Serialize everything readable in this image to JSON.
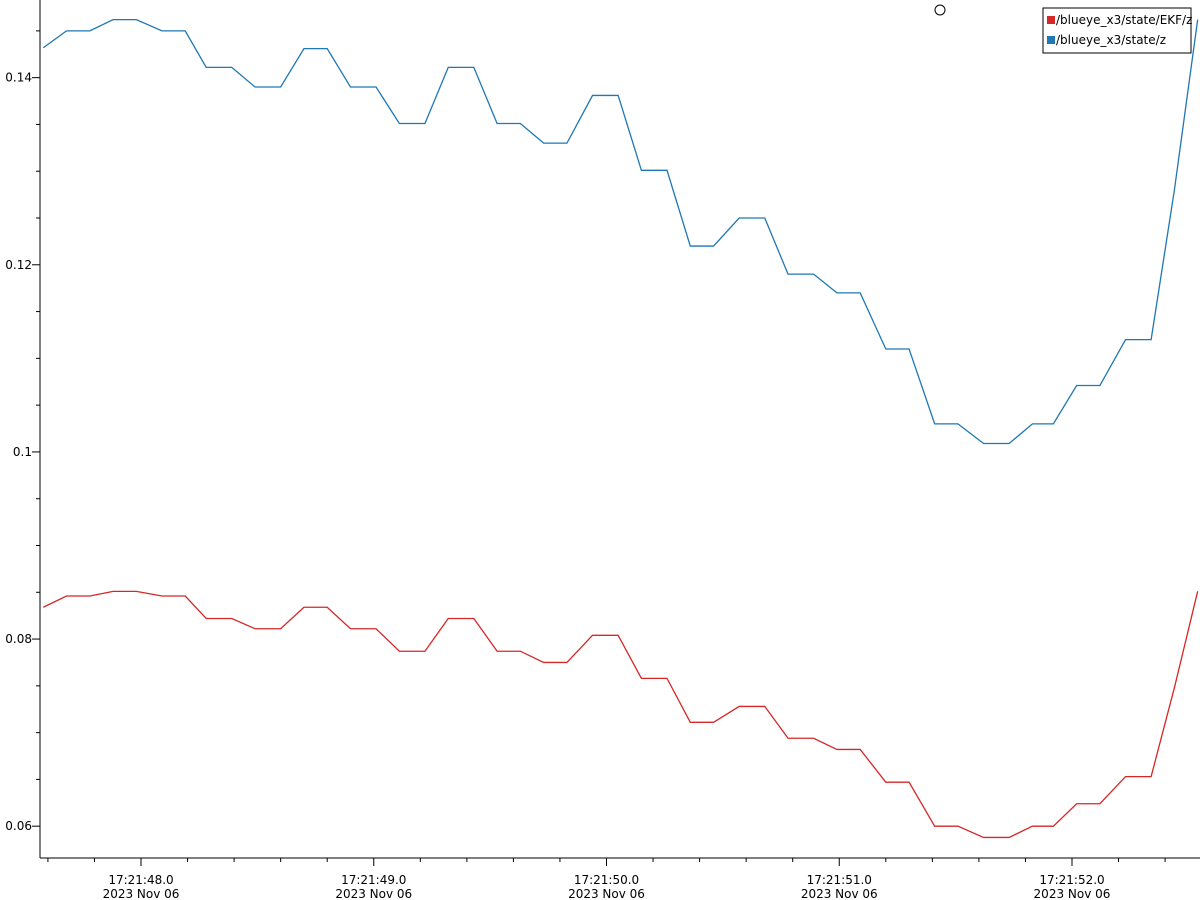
{
  "chart_data": {
    "type": "line",
    "x": [
      47.58,
      47.68,
      47.78,
      47.88,
      47.98,
      48.09,
      48.19,
      48.28,
      48.39,
      48.49,
      48.6,
      48.7,
      48.8,
      48.9,
      49.01,
      49.11,
      49.22,
      49.32,
      49.43,
      49.53,
      49.63,
      49.73,
      49.83,
      49.94,
      50.05,
      50.15,
      50.26,
      50.36,
      50.46,
      50.57,
      50.68,
      50.78,
      50.89,
      50.99,
      51.09,
      51.2,
      51.3,
      51.41,
      51.51,
      51.62,
      51.73,
      51.83,
      51.92,
      52.02,
      52.12,
      52.23,
      52.34,
      52.44,
      52.54
    ],
    "series": [
      {
        "name": "/blueye_x3/state/EKF/z",
        "color": "#d62728",
        "values": [
          0.0834,
          0.0846,
          0.0846,
          0.0851,
          0.0851,
          0.0846,
          0.0846,
          0.0822,
          0.0822,
          0.0811,
          0.0811,
          0.0834,
          0.0834,
          0.0811,
          0.0811,
          0.0787,
          0.0787,
          0.0822,
          0.0822,
          0.0787,
          0.0787,
          0.0775,
          0.0775,
          0.0804,
          0.0804,
          0.0758,
          0.0758,
          0.0711,
          0.0711,
          0.0728,
          0.0728,
          0.0694,
          0.0694,
          0.0682,
          0.0682,
          0.0647,
          0.0647,
          0.06,
          0.06,
          0.0588,
          0.0588,
          0.06,
          0.06,
          0.0624,
          0.0624,
          0.0653,
          0.0653,
          0.0748,
          0.0851
        ]
      },
      {
        "name": "/blueye_x3/state/z",
        "color": "#1f77b4",
        "values": [
          0.1432,
          0.145,
          0.145,
          0.1462,
          0.1462,
          0.145,
          0.145,
          0.1411,
          0.1411,
          0.139,
          0.139,
          0.1431,
          0.1431,
          0.139,
          0.139,
          0.1351,
          0.1351,
          0.1411,
          0.1411,
          0.1351,
          0.1351,
          0.133,
          0.133,
          0.1381,
          0.1381,
          0.1301,
          0.1301,
          0.122,
          0.122,
          0.125,
          0.125,
          0.119,
          0.119,
          0.117,
          0.117,
          0.111,
          0.111,
          0.103,
          0.103,
          0.1009,
          0.1009,
          0.103,
          0.103,
          0.1071,
          0.1071,
          0.112,
          0.112,
          0.128,
          0.1462
        ]
      }
    ],
    "xlim": [
      47.566,
      52.55
    ],
    "xticks": [
      {
        "value": 48,
        "label": [
          "17:21:48.0",
          "2023 Nov 06"
        ]
      },
      {
        "value": 49,
        "label": [
          "17:21:49.0",
          "2023 Nov 06"
        ]
      },
      {
        "value": 50,
        "label": [
          "17:21:50.0",
          "2023 Nov 06"
        ]
      },
      {
        "value": 51,
        "label": [
          "17:21:51.0",
          "2023 Nov 06"
        ]
      },
      {
        "value": 52,
        "label": [
          "17:21:52.0",
          "2023 Nov 06"
        ]
      }
    ],
    "xminorticks": [
      47.6,
      47.8,
      48.2,
      48.4,
      48.6,
      48.8,
      49.2,
      49.4,
      49.6,
      49.8,
      50.2,
      50.4,
      50.6,
      50.8,
      51.2,
      51.4,
      51.6,
      51.8,
      52.2,
      52.4
    ],
    "ylim": [
      0.0566,
      0.1483
    ],
    "yticks": [
      0.06,
      0.08,
      0.1,
      0.12,
      0.14
    ],
    "yminorticks": [
      0.065,
      0.07,
      0.075,
      0.085,
      0.09,
      0.095,
      0.105,
      0.11,
      0.115,
      0.125,
      0.13,
      0.135,
      0.145
    ],
    "legend": "top-right",
    "grid": false
  }
}
